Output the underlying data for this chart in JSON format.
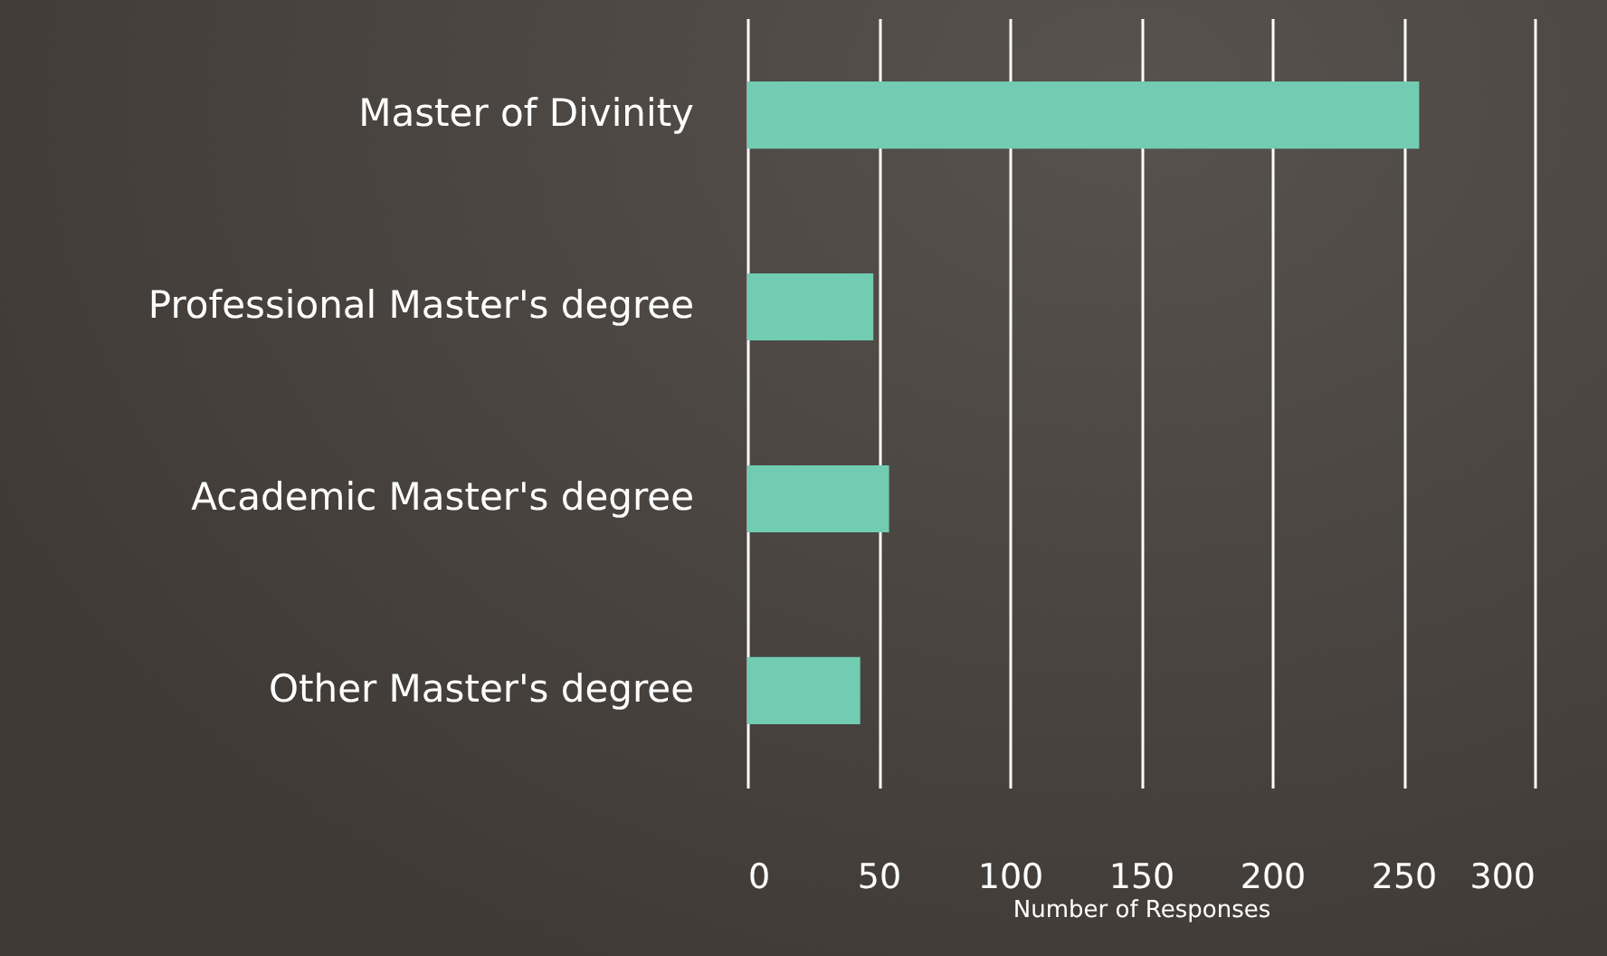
{
  "chart_data": {
    "type": "bar",
    "orientation": "horizontal",
    "xlabel": "Number of Responses",
    "categories": [
      "Master of Divinity",
      "Professional Master's degree",
      "Academic Master's degree",
      "Other Master's degree"
    ],
    "values": [
      256,
      48,
      54,
      43
    ],
    "color": "#71ccb2",
    "xlim": [
      0,
      300
    ],
    "xticks": [
      0,
      50,
      100,
      150,
      200,
      250,
      300
    ],
    "grid": "x"
  }
}
